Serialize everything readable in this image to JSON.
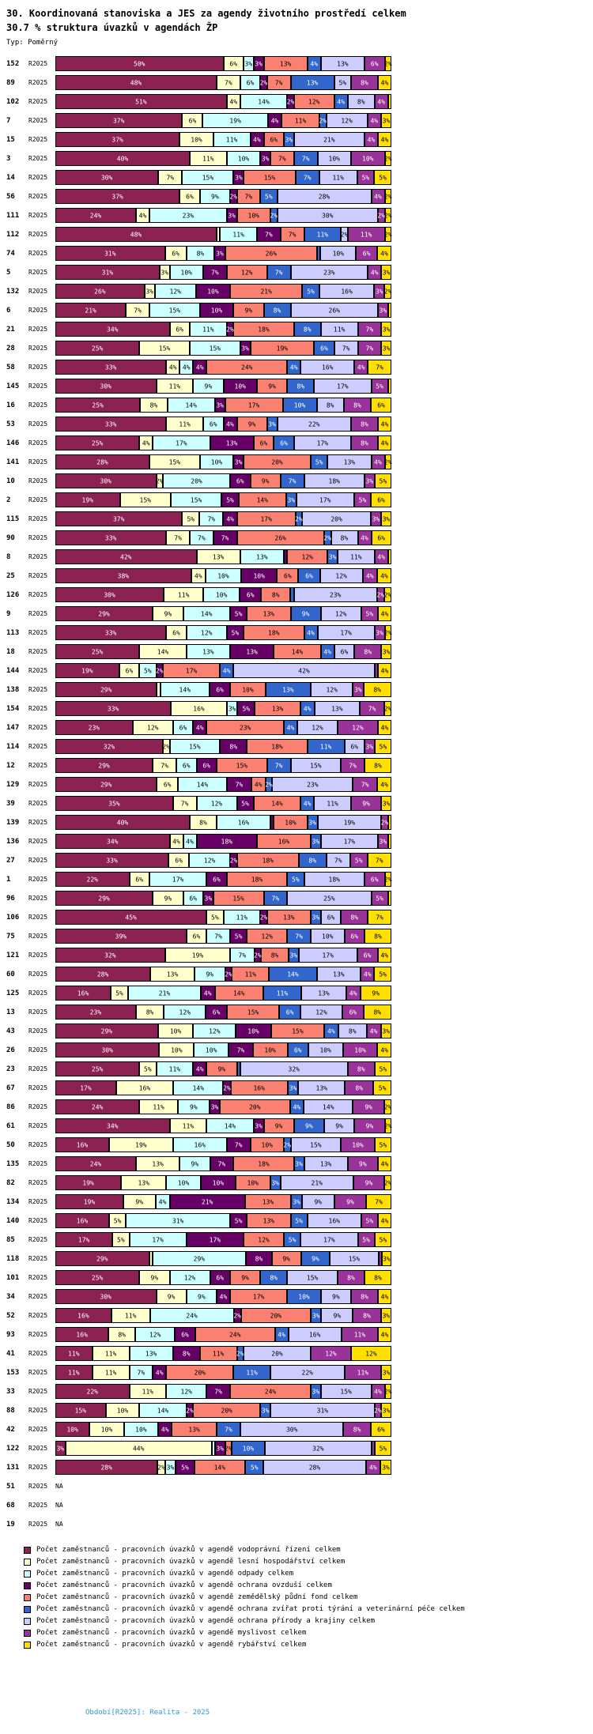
{
  "header": {
    "title": "30. Koordinovaná stanoviska a JES za agendy životního prostředí celkem",
    "subtitle": "30.7 % struktura úvazků v agendách ŽP",
    "type_label": "Typ: Poměrný"
  },
  "chart_data": {
    "type": "bar",
    "orientation": "horizontal",
    "stacked": true,
    "value_unit": "%",
    "series_label": "R2025",
    "na_label": "NA",
    "xlim": [
      0,
      100
    ],
    "legend_position": "bottom",
    "categories": [
      "Počet zaměstnanců - pracovních úvazků v agendě vodoprávní řízení celkem",
      "Počet zaměstnanců - pracovních úvazků v agendě lesní hospodářství celkem",
      "Počet zaměstnanců - pracovních úvazků v agendě odpady celkem",
      "Počet zaměstnanců - pracovních úvazků v agendě ochrana ovzduší celkem",
      "Počet zaměstnanců - pracovních úvazků v agendě zemědělský půdní fond celkem",
      "Počet zaměstnanců - pracovních úvazků v agendě ochrana zvířat proti týrání a veterinární péče celkem",
      "Počet zaměstnanců - pracovních úvazků v agendě ochrana přírody a krajiny celkem",
      "Počet zaměstnanců - pracovních úvazků v agendě myslivost celkem",
      "Počet zaměstnanců - pracovních úvazků v agendě rybářství celkem"
    ],
    "colors": [
      "#8B2252",
      "#FFFFCC",
      "#CCFFFF",
      "#660066",
      "#FA8072",
      "#3366CC",
      "#CCCCFF",
      "#993399",
      "#FFDF00"
    ],
    "label_colors": [
      "#ffffff",
      "#000000",
      "#000000",
      "#ffffff",
      "#000000",
      "#ffffff",
      "#000000",
      "#ffffff",
      "#000000"
    ],
    "rows": [
      {
        "id": "152",
        "values": [
          50,
          6,
          3,
          3,
          13,
          4,
          13,
          6,
          2
        ]
      },
      {
        "id": "89",
        "values": [
          48,
          7,
          6,
          2,
          7,
          13,
          5,
          8,
          4
        ]
      },
      {
        "id": "102",
        "values": [
          51,
          4,
          14,
          2,
          12,
          4,
          8,
          4,
          1
        ]
      },
      {
        "id": "7",
        "values": [
          37,
          6,
          19,
          4,
          11,
          2,
          12,
          4,
          3
        ]
      },
      {
        "id": "15",
        "values": [
          37,
          10,
          11,
          4,
          6,
          3,
          21,
          4,
          4
        ]
      },
      {
        "id": "3",
        "values": [
          40,
          11,
          10,
          3,
          7,
          7,
          10,
          10,
          2
        ]
      },
      {
        "id": "14",
        "values": [
          30,
          7,
          15,
          3,
          15,
          7,
          11,
          5,
          5
        ]
      },
      {
        "id": "56",
        "values": [
          37,
          6,
          9,
          2,
          7,
          5,
          28,
          4,
          2
        ]
      },
      {
        "id": "111",
        "values": [
          24,
          4,
          23,
          3,
          10,
          2,
          30,
          2,
          2
        ]
      },
      {
        "id": "112",
        "values": [
          48,
          1,
          11,
          7,
          7,
          11,
          2,
          11,
          2
        ]
      },
      {
        "id": "74",
        "values": [
          31,
          6,
          8,
          3,
          26,
          1,
          10,
          6,
          4
        ]
      },
      {
        "id": "5",
        "values": [
          31,
          3,
          10,
          7,
          12,
          7,
          23,
          4,
          3
        ]
      },
      {
        "id": "132",
        "values": [
          26,
          3,
          12,
          10,
          21,
          5,
          16,
          3,
          2
        ]
      },
      {
        "id": "6",
        "values": [
          21,
          7,
          15,
          10,
          9,
          8,
          26,
          3,
          1
        ]
      },
      {
        "id": "21",
        "values": [
          34,
          6,
          11,
          2,
          18,
          8,
          11,
          7,
          3
        ]
      },
      {
        "id": "28",
        "values": [
          25,
          15,
          15,
          3,
          19,
          6,
          7,
          7,
          3
        ]
      },
      {
        "id": "58",
        "values": [
          33,
          4,
          4,
          4,
          24,
          4,
          16,
          4,
          7
        ]
      },
      {
        "id": "145",
        "values": [
          30,
          11,
          9,
          10,
          9,
          8,
          17,
          5,
          1
        ]
      },
      {
        "id": "16",
        "values": [
          25,
          8,
          14,
          3,
          17,
          10,
          8,
          8,
          6
        ]
      },
      {
        "id": "53",
        "values": [
          33,
          11,
          6,
          4,
          9,
          3,
          22,
          8,
          4
        ]
      },
      {
        "id": "146",
        "values": [
          25,
          4,
          17,
          13,
          6,
          6,
          17,
          8,
          4
        ]
      },
      {
        "id": "141",
        "values": [
          28,
          15,
          10,
          3,
          20,
          5,
          13,
          4,
          2
        ]
      },
      {
        "id": "10",
        "values": [
          30,
          2,
          20,
          6,
          9,
          7,
          18,
          3,
          5
        ]
      },
      {
        "id": "2",
        "values": [
          19,
          15,
          15,
          5,
          14,
          3,
          17,
          5,
          6
        ]
      },
      {
        "id": "115",
        "values": [
          37,
          5,
          7,
          4,
          17,
          2,
          20,
          3,
          3
        ]
      },
      {
        "id": "90",
        "values": [
          33,
          7,
          7,
          7,
          26,
          2,
          8,
          4,
          6
        ]
      },
      {
        "id": "8",
        "values": [
          42,
          13,
          13,
          1,
          12,
          3,
          11,
          4,
          1
        ]
      },
      {
        "id": "25",
        "values": [
          38,
          4,
          10,
          10,
          6,
          6,
          12,
          4,
          4
        ]
      },
      {
        "id": "126",
        "values": [
          30,
          11,
          10,
          6,
          8,
          1,
          23,
          2,
          2
        ]
      },
      {
        "id": "9",
        "values": [
          29,
          9,
          14,
          5,
          13,
          9,
          12,
          5,
          4
        ]
      },
      {
        "id": "113",
        "values": [
          33,
          6,
          12,
          5,
          18,
          4,
          17,
          3,
          2
        ]
      },
      {
        "id": "18",
        "values": [
          25,
          14,
          13,
          13,
          14,
          4,
          6,
          8,
          3
        ]
      },
      {
        "id": "144",
        "values": [
          19,
          6,
          5,
          2,
          17,
          4,
          42,
          1,
          4
        ]
      },
      {
        "id": "138",
        "values": [
          29,
          1,
          14,
          6,
          10,
          13,
          12,
          3,
          8
        ]
      },
      {
        "id": "154",
        "values": [
          33,
          16,
          3,
          5,
          13,
          4,
          13,
          7,
          2
        ]
      },
      {
        "id": "147",
        "values": [
          23,
          12,
          6,
          4,
          23,
          4,
          12,
          12,
          4
        ]
      },
      {
        "id": "114",
        "values": [
          32,
          2,
          15,
          8,
          18,
          11,
          6,
          3,
          5
        ]
      },
      {
        "id": "12",
        "values": [
          29,
          7,
          6,
          6,
          15,
          7,
          15,
          7,
          8
        ]
      },
      {
        "id": "129",
        "values": [
          29,
          6,
          14,
          7,
          4,
          2,
          23,
          7,
          4
        ]
      },
      {
        "id": "39",
        "values": [
          35,
          7,
          12,
          5,
          14,
          4,
          11,
          9,
          3
        ]
      },
      {
        "id": "139",
        "values": [
          40,
          8,
          16,
          1,
          10,
          3,
          19,
          2,
          1
        ]
      },
      {
        "id": "136",
        "values": [
          34,
          4,
          4,
          18,
          16,
          3,
          17,
          3,
          1
        ]
      },
      {
        "id": "27",
        "values": [
          33,
          6,
          12,
          2,
          18,
          8,
          7,
          5,
          7
        ]
      },
      {
        "id": "1",
        "values": [
          22,
          6,
          17,
          6,
          18,
          5,
          18,
          6,
          2
        ]
      },
      {
        "id": "96",
        "values": [
          29,
          9,
          6,
          3,
          15,
          7,
          25,
          5,
          1
        ]
      },
      {
        "id": "106",
        "values": [
          45,
          5,
          11,
          2,
          13,
          3,
          6,
          8,
          7
        ]
      },
      {
        "id": "75",
        "values": [
          39,
          6,
          7,
          5,
          12,
          7,
          10,
          6,
          8
        ]
      },
      {
        "id": "121",
        "values": [
          32,
          19,
          7,
          2,
          8,
          3,
          17,
          6,
          4
        ]
      },
      {
        "id": "60",
        "values": [
          28,
          13,
          9,
          2,
          11,
          14,
          13,
          4,
          5
        ]
      },
      {
        "id": "125",
        "values": [
          16,
          5,
          21,
          4,
          14,
          11,
          13,
          4,
          9
        ]
      },
      {
        "id": "13",
        "values": [
          23,
          8,
          12,
          6,
          15,
          6,
          12,
          6,
          8
        ]
      },
      {
        "id": "43",
        "values": [
          29,
          10,
          12,
          10,
          15,
          4,
          8,
          4,
          3
        ]
      },
      {
        "id": "26",
        "values": [
          30,
          10,
          10,
          7,
          10,
          6,
          10,
          10,
          4
        ]
      },
      {
        "id": "23",
        "values": [
          25,
          5,
          11,
          4,
          9,
          1,
          32,
          8,
          5
        ]
      },
      {
        "id": "67",
        "values": [
          17,
          16,
          14,
          2,
          16,
          3,
          13,
          8,
          5
        ]
      },
      {
        "id": "86",
        "values": [
          24,
          11,
          9,
          3,
          20,
          4,
          14,
          9,
          2
        ]
      },
      {
        "id": "61",
        "values": [
          34,
          11,
          14,
          3,
          9,
          9,
          9,
          9,
          2
        ]
      },
      {
        "id": "50",
        "values": [
          16,
          19,
          16,
          7,
          10,
          2,
          15,
          10,
          5
        ]
      },
      {
        "id": "135",
        "values": [
          24,
          13,
          9,
          7,
          18,
          3,
          13,
          9,
          4
        ]
      },
      {
        "id": "82",
        "values": [
          19,
          13,
          10,
          10,
          10,
          3,
          21,
          9,
          2
        ]
      },
      {
        "id": "134",
        "values": [
          19,
          9,
          4,
          21,
          13,
          3,
          9,
          9,
          7
        ]
      },
      {
        "id": "140",
        "values": [
          16,
          5,
          31,
          5,
          13,
          5,
          16,
          5,
          4
        ]
      },
      {
        "id": "85",
        "values": [
          17,
          5,
          17,
          17,
          12,
          5,
          17,
          5,
          5
        ]
      },
      {
        "id": "118",
        "values": [
          29,
          1,
          29,
          8,
          9,
          9,
          15,
          1,
          3
        ]
      },
      {
        "id": "101",
        "values": [
          25,
          9,
          12,
          6,
          9,
          8,
          15,
          8,
          8
        ]
      },
      {
        "id": "34",
        "values": [
          30,
          9,
          9,
          4,
          17,
          10,
          9,
          8,
          4
        ]
      },
      {
        "id": "52",
        "values": [
          16,
          11,
          24,
          2,
          20,
          3,
          9,
          8,
          3
        ]
      },
      {
        "id": "93",
        "values": [
          16,
          8,
          12,
          6,
          24,
          4,
          16,
          11,
          4
        ]
      },
      {
        "id": "41",
        "values": [
          11,
          11,
          13,
          8,
          11,
          2,
          20,
          12,
          12
        ]
      },
      {
        "id": "153",
        "values": [
          11,
          11,
          7,
          4,
          20,
          11,
          22,
          11,
          3
        ]
      },
      {
        "id": "33",
        "values": [
          22,
          11,
          12,
          7,
          24,
          3,
          15,
          4,
          2
        ]
      },
      {
        "id": "88",
        "values": [
          15,
          10,
          14,
          2,
          20,
          3,
          31,
          2,
          3
        ]
      },
      {
        "id": "42",
        "values": [
          10,
          10,
          10,
          4,
          13,
          7,
          30,
          8,
          6
        ]
      },
      {
        "id": "122",
        "values": [
          3,
          44,
          1,
          3,
          2,
          10,
          32,
          1,
          5
        ]
      },
      {
        "id": "131",
        "values": [
          28,
          2,
          3,
          5,
          14,
          5,
          28,
          4,
          3
        ]
      },
      {
        "id": "51",
        "values": null
      },
      {
        "id": "68",
        "values": null
      },
      {
        "id": "19",
        "values": null
      }
    ]
  },
  "footer": {
    "text": "Období[R2025]: Realita - 2025"
  }
}
